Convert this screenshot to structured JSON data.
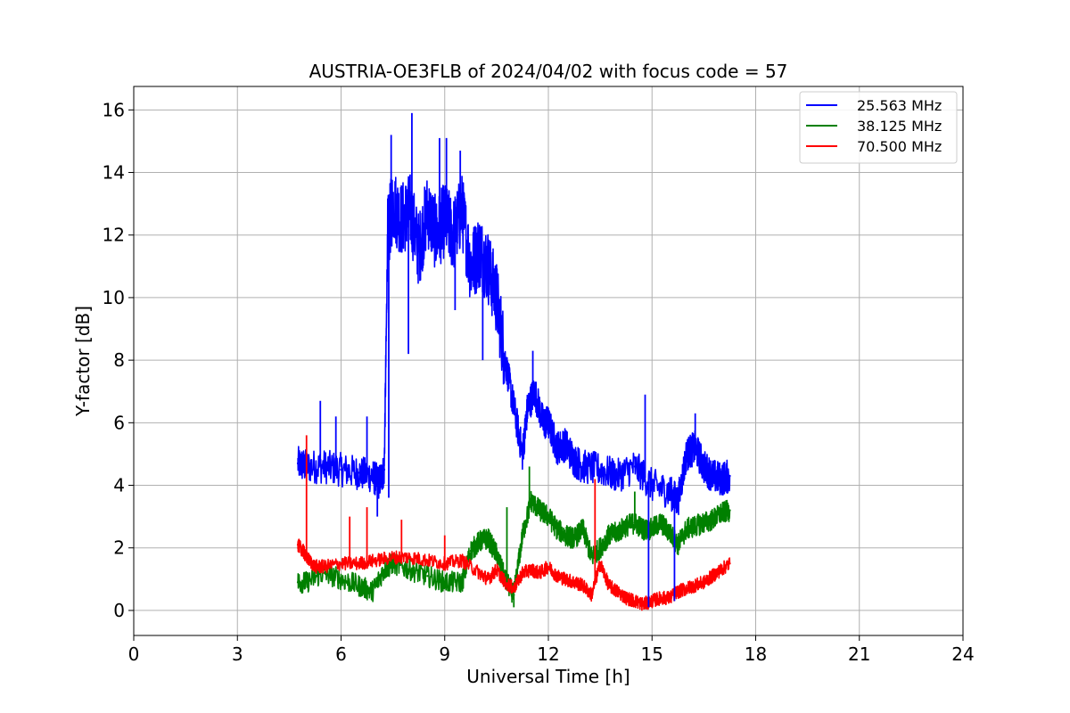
{
  "chart_data": {
    "type": "line",
    "title": "AUSTRIA-OE3FLB of 2024/04/02 with focus code = 57",
    "xlabel": "Universal Time [h]",
    "ylabel": "Y-factor [dB]",
    "xlim": [
      0,
      24
    ],
    "ylim": [
      -0.8,
      16.75
    ],
    "xticks": [
      0,
      3,
      6,
      9,
      12,
      15,
      18,
      21,
      24
    ],
    "xtick_labels": [
      "0",
      "3",
      "6",
      "9",
      "12",
      "15",
      "18",
      "21",
      "24"
    ],
    "yticks": [
      0,
      2,
      4,
      6,
      8,
      10,
      12,
      14,
      16
    ],
    "ytick_labels": [
      "0",
      "2",
      "4",
      "6",
      "8",
      "10",
      "12",
      "14",
      "16"
    ],
    "grid": true,
    "legend_position": "top-right",
    "series": [
      {
        "name": "25.563 MHz",
        "color": "#0000ff",
        "x": [
          4.75,
          5.0,
          5.5,
          6.0,
          6.5,
          6.9,
          7.1,
          7.25,
          7.35,
          7.5,
          7.75,
          8.0,
          8.25,
          8.5,
          8.75,
          9.0,
          9.25,
          9.5,
          9.75,
          10.0,
          10.25,
          10.5,
          10.75,
          11.0,
          11.25,
          11.4,
          11.6,
          11.85,
          12.0,
          12.25,
          12.5,
          12.75,
          13.0,
          13.5,
          14.0,
          14.5,
          15.0,
          15.5,
          15.75,
          16.0,
          16.25,
          16.5,
          16.75,
          17.0,
          17.25
        ],
        "y": [
          4.7,
          4.6,
          4.6,
          4.5,
          4.4,
          4.3,
          4.1,
          4.5,
          12.0,
          13.0,
          12.5,
          12.8,
          11.5,
          12.8,
          12.0,
          12.5,
          12.0,
          12.8,
          11.0,
          11.5,
          11.0,
          10.0,
          8.0,
          6.5,
          5.0,
          6.5,
          7.0,
          6.0,
          6.0,
          5.2,
          5.3,
          4.8,
          4.6,
          4.5,
          4.3,
          4.6,
          4.0,
          3.8,
          3.5,
          5.0,
          5.2,
          4.6,
          4.3,
          4.2,
          4.3
        ]
      },
      {
        "name": "38.125 MHz",
        "color": "#008000",
        "x": [
          4.75,
          5.0,
          5.5,
          6.0,
          6.5,
          6.9,
          7.25,
          7.5,
          8.0,
          8.5,
          9.0,
          9.5,
          9.75,
          10.0,
          10.25,
          10.5,
          10.75,
          11.0,
          11.25,
          11.5,
          11.75,
          12.0,
          12.25,
          12.5,
          12.75,
          13.0,
          13.25,
          13.5,
          13.75,
          14.0,
          14.25,
          14.5,
          14.75,
          15.0,
          15.25,
          15.5,
          15.75,
          16.0,
          16.25,
          16.5,
          16.75,
          17.0,
          17.25
        ],
        "y": [
          0.9,
          0.9,
          1.2,
          1.0,
          0.8,
          0.6,
          1.3,
          1.5,
          1.3,
          1.1,
          0.9,
          0.9,
          1.9,
          2.2,
          2.3,
          1.8,
          1.0,
          0.5,
          2.4,
          3.5,
          3.2,
          3.0,
          2.6,
          2.4,
          2.3,
          2.6,
          1.7,
          2.0,
          2.4,
          2.5,
          2.7,
          2.8,
          2.6,
          2.6,
          2.8,
          2.5,
          2.1,
          2.6,
          2.7,
          2.8,
          2.9,
          3.1,
          3.2
        ]
      },
      {
        "name": "70.500 MHz",
        "color": "#ff0000",
        "x": [
          4.75,
          4.9,
          5.0,
          5.25,
          5.5,
          6.0,
          6.5,
          7.0,
          7.5,
          8.0,
          8.5,
          9.0,
          9.5,
          10.0,
          10.25,
          10.5,
          10.75,
          11.0,
          11.25,
          11.5,
          11.75,
          12.0,
          12.25,
          12.5,
          12.75,
          13.0,
          13.25,
          13.5,
          13.75,
          14.0,
          14.25,
          14.5,
          14.75,
          15.0,
          15.25,
          15.5,
          15.75,
          16.0,
          16.25,
          16.5,
          16.75,
          17.0,
          17.25
        ],
        "y": [
          2.1,
          1.9,
          1.7,
          1.4,
          1.4,
          1.5,
          1.5,
          1.6,
          1.7,
          1.7,
          1.6,
          1.5,
          1.6,
          1.2,
          1.0,
          1.3,
          0.9,
          0.7,
          1.2,
          1.3,
          1.2,
          1.4,
          1.1,
          1.0,
          0.9,
          0.8,
          0.5,
          1.5,
          0.8,
          0.6,
          0.4,
          0.3,
          0.2,
          0.3,
          0.4,
          0.4,
          0.6,
          0.7,
          0.8,
          0.9,
          1.1,
          1.3,
          1.5
        ]
      }
    ],
    "spikes": [
      {
        "series": 0,
        "x": 5.4,
        "y": 6.7
      },
      {
        "series": 0,
        "x": 5.85,
        "y": 6.2
      },
      {
        "series": 0,
        "x": 6.75,
        "y": 6.2
      },
      {
        "series": 0,
        "x": 7.05,
        "y": 3.0
      },
      {
        "series": 0,
        "x": 7.38,
        "y": 3.6
      },
      {
        "series": 0,
        "x": 7.45,
        "y": 15.2
      },
      {
        "series": 0,
        "x": 7.95,
        "y": 8.2
      },
      {
        "series": 0,
        "x": 8.05,
        "y": 15.9
      },
      {
        "series": 0,
        "x": 8.85,
        "y": 15.1
      },
      {
        "series": 0,
        "x": 9.05,
        "y": 15.1
      },
      {
        "series": 0,
        "x": 9.3,
        "y": 9.6
      },
      {
        "series": 0,
        "x": 9.45,
        "y": 14.7
      },
      {
        "series": 0,
        "x": 10.1,
        "y": 8.0
      },
      {
        "series": 0,
        "x": 11.55,
        "y": 8.3
      },
      {
        "series": 0,
        "x": 14.8,
        "y": 6.9
      },
      {
        "series": 0,
        "x": 14.9,
        "y": 0.1
      },
      {
        "series": 0,
        "x": 15.65,
        "y": 0.3
      },
      {
        "series": 0,
        "x": 16.25,
        "y": 6.3
      },
      {
        "series": 1,
        "x": 10.8,
        "y": 3.3
      },
      {
        "series": 1,
        "x": 11.0,
        "y": 0.1
      },
      {
        "series": 1,
        "x": 11.45,
        "y": 4.6
      },
      {
        "series": 1,
        "x": 14.5,
        "y": 3.8
      },
      {
        "series": 2,
        "x": 5.0,
        "y": 5.6
      },
      {
        "series": 2,
        "x": 6.25,
        "y": 3.0
      },
      {
        "series": 2,
        "x": 6.75,
        "y": 3.3
      },
      {
        "series": 2,
        "x": 7.75,
        "y": 2.9
      },
      {
        "series": 2,
        "x": 9.0,
        "y": 2.4
      },
      {
        "series": 2,
        "x": 13.35,
        "y": 4.2
      }
    ]
  }
}
